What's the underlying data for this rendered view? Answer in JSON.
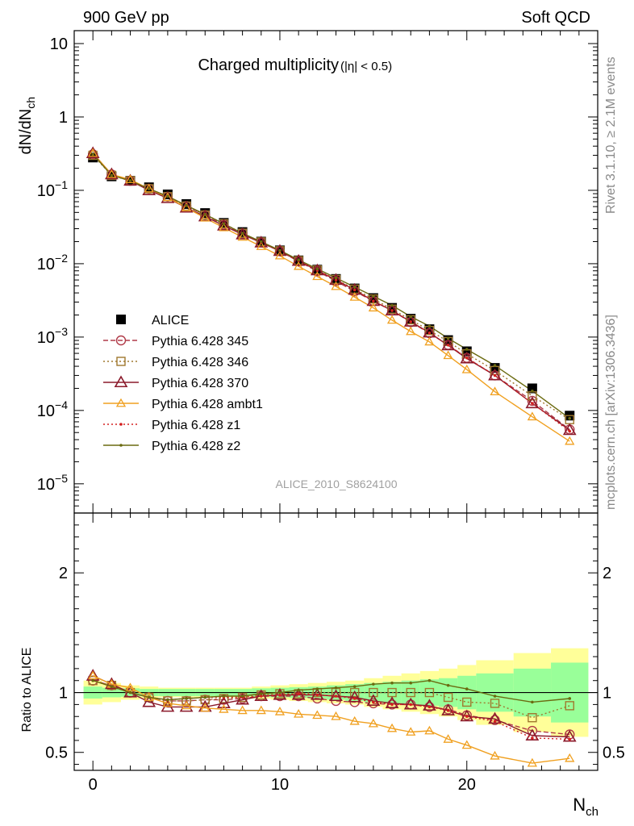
{
  "header": {
    "left": "900 GeV pp",
    "right": "Soft QCD"
  },
  "side_labels": {
    "rivet": "Rivet 3.1.10, ≥ 2.1M events",
    "mcplots": "mcplots.cern.ch [arXiv:1306.3436]"
  },
  "colors": {
    "ALICE": "#000000",
    "Pythia 6.428 345": "#b03a48",
    "Pythia 6.428 346": "#a0782e",
    "Pythia 6.428 370": "#8b1a2b",
    "Pythia 6.428 ambt1": "#f0a020",
    "Pythia 6.428 z1": "#d42020",
    "Pythia 6.428 z2": "#6b6b10",
    "band_inner": "#99ff99",
    "band_outer": "#ffff99"
  },
  "chart_data": [
    {
      "type": "scatter",
      "title_main": "Charged multiplicity",
      "title_suffix": "(|η| < 0.5)",
      "watermark": "ALICE_2010_S8624100",
      "ylabel": "dN/dN",
      "ylabel_sub": "ch",
      "yscale": "log",
      "xlim": [
        -1,
        27
      ],
      "ylim": [
        4e-06,
        15
      ],
      "yticks": [
        {
          "v": 1e-05,
          "base": "10",
          "exp": "−5"
        },
        {
          "v": 0.0001,
          "base": "10",
          "exp": "−4"
        },
        {
          "v": 0.001,
          "base": "10",
          "exp": "−3"
        },
        {
          "v": 0.01,
          "base": "10",
          "exp": "−2"
        },
        {
          "v": 0.1,
          "base": "10",
          "exp": "−1"
        },
        {
          "v": 1,
          "base": "1",
          "exp": ""
        },
        {
          "v": 10,
          "base": "10",
          "exp": ""
        }
      ],
      "legend_position": "middle-left",
      "x": [
        0,
        1,
        2,
        3,
        4,
        5,
        6,
        7,
        8,
        9,
        10,
        11,
        12,
        13,
        14,
        15,
        16,
        17,
        18,
        19,
        20,
        21.5,
        23.5,
        25.5
      ],
      "series": [
        {
          "name": "ALICE",
          "style": "data",
          "values": [
            0.28,
            0.155,
            0.135,
            0.11,
            0.088,
            0.065,
            0.049,
            0.036,
            0.027,
            0.02,
            0.0152,
            0.0111,
            0.0083,
            0.0062,
            0.0046,
            0.0034,
            0.0025,
            0.00178,
            0.00128,
            0.00091,
            0.00064,
            0.00038,
            0.0002,
            8.5e-05
          ]
        },
        {
          "name": "Pythia 6.428 345",
          "style": "circle-dashed",
          "values": [
            0.31,
            0.165,
            0.135,
            0.105,
            0.082,
            0.061,
            0.046,
            0.034,
            0.026,
            0.0195,
            0.0148,
            0.0108,
            0.0079,
            0.0058,
            0.0042,
            0.0031,
            0.0023,
            0.0016,
            0.00113,
            0.00078,
            0.00052,
            0.0003,
            0.000135,
            5.5e-05
          ]
        },
        {
          "name": "Pythia 6.428 346",
          "style": "square-dotted",
          "values": [
            0.3,
            0.16,
            0.135,
            0.105,
            0.082,
            0.061,
            0.046,
            0.035,
            0.026,
            0.0198,
            0.015,
            0.011,
            0.0082,
            0.0061,
            0.0045,
            0.0033,
            0.0024,
            0.00172,
            0.00123,
            0.00087,
            0.00059,
            0.00035,
            0.000158,
            7.5e-05
          ]
        },
        {
          "name": "Pythia 6.428 370",
          "style": "triangle-solid",
          "values": [
            0.32,
            0.165,
            0.135,
            0.1,
            0.078,
            0.058,
            0.044,
            0.033,
            0.025,
            0.0194,
            0.0149,
            0.0109,
            0.0081,
            0.006,
            0.0044,
            0.0031,
            0.0023,
            0.00162,
            0.00115,
            0.00077,
            0.00051,
            0.0003,
            0.000125,
            5.4e-05
          ]
        },
        {
          "name": "Pythia 6.428 ambt1",
          "style": "triangle-small-solid",
          "values": [
            0.32,
            0.165,
            0.14,
            0.105,
            0.08,
            0.058,
            0.042,
            0.031,
            0.023,
            0.0172,
            0.0128,
            0.0092,
            0.0067,
            0.0049,
            0.0035,
            0.0025,
            0.0017,
            0.00119,
            0.00086,
            0.00056,
            0.00036,
            0.00018,
            8.2e-05,
            3.8e-05
          ]
        },
        {
          "name": "Pythia 6.428 z1",
          "style": "dot-dotted",
          "values": [
            0.31,
            0.16,
            0.135,
            0.105,
            0.083,
            0.062,
            0.047,
            0.035,
            0.026,
            0.0196,
            0.0149,
            0.011,
            0.0081,
            0.006,
            0.0044,
            0.0031,
            0.0023,
            0.00162,
            0.00114,
            0.00078,
            0.00052,
            0.0003,
            0.000125,
            5.2e-05
          ]
        },
        {
          "name": "Pythia 6.428 z2",
          "style": "dot-solid",
          "values": [
            0.31,
            0.16,
            0.135,
            0.105,
            0.083,
            0.062,
            0.047,
            0.035,
            0.026,
            0.0199,
            0.0152,
            0.0113,
            0.0085,
            0.0064,
            0.0048,
            0.0036,
            0.0027,
            0.0019,
            0.00141,
            0.00096,
            0.00068,
            0.00041,
            0.000184,
            7.8e-05
          ]
        }
      ]
    },
    {
      "type": "line",
      "ylabel": "Ratio to ALICE",
      "xlabel": "N",
      "xlabel_sub": "ch",
      "xlim": [
        -1,
        27
      ],
      "ylim": [
        0.35,
        2.5
      ],
      "xticks": [
        0,
        10,
        20
      ],
      "yticks": [
        0.5,
        1,
        2
      ],
      "x": [
        0,
        1,
        2,
        3,
        4,
        5,
        6,
        7,
        8,
        9,
        10,
        11,
        12,
        13,
        14,
        15,
        16,
        17,
        18,
        19,
        20,
        21.5,
        23.5,
        25.5
      ],
      "band_edges": [
        -0.5,
        0.5,
        1.5,
        2.5,
        3.5,
        4.5,
        5.5,
        6.5,
        7.5,
        8.5,
        9.5,
        10.5,
        11.5,
        12.5,
        13.5,
        14.5,
        15.5,
        16.5,
        17.5,
        18.5,
        19.5,
        20.5,
        22.5,
        24.5,
        26.5
      ],
      "band_inner": [
        0.05,
        0.04,
        0.035,
        0.03,
        0.03,
        0.03,
        0.03,
        0.03,
        0.03,
        0.035,
        0.04,
        0.045,
        0.05,
        0.06,
        0.07,
        0.08,
        0.09,
        0.1,
        0.11,
        0.12,
        0.14,
        0.16,
        0.2,
        0.25
      ],
      "band_outer": [
        0.1,
        0.08,
        0.06,
        0.05,
        0.04,
        0.04,
        0.04,
        0.04,
        0.04,
        0.05,
        0.06,
        0.07,
        0.08,
        0.09,
        0.1,
        0.12,
        0.14,
        0.16,
        0.18,
        0.2,
        0.23,
        0.27,
        0.33,
        0.37
      ],
      "series": [
        {
          "name": "Pythia 6.428 345",
          "values": [
            1.1,
            1.06,
            1.0,
            0.96,
            0.93,
            0.93,
            0.94,
            0.94,
            0.95,
            0.97,
            0.97,
            0.97,
            0.95,
            0.93,
            0.92,
            0.91,
            0.9,
            0.9,
            0.88,
            0.86,
            0.81,
            0.77,
            0.68,
            0.65
          ]
        },
        {
          "name": "Pythia 6.428 346",
          "values": [
            1.1,
            1.06,
            1.0,
            0.96,
            0.93,
            0.93,
            0.94,
            0.95,
            0.96,
            0.98,
            0.99,
            0.99,
            1.0,
            1.0,
            1.0,
            1.0,
            1.0,
            1.0,
            1.0,
            0.96,
            0.92,
            0.91,
            0.79,
            0.89
          ]
        },
        {
          "name": "Pythia 6.428 370",
          "values": [
            1.14,
            1.07,
            1.0,
            0.92,
            0.88,
            0.88,
            0.88,
            0.91,
            0.94,
            0.97,
            0.98,
            0.98,
            0.98,
            0.97,
            0.96,
            0.93,
            0.91,
            0.9,
            0.89,
            0.85,
            0.8,
            0.78,
            0.64,
            0.63
          ]
        },
        {
          "name": "Pythia 6.428 ambt1",
          "values": [
            1.14,
            1.07,
            1.04,
            0.96,
            0.91,
            0.89,
            0.87,
            0.86,
            0.85,
            0.85,
            0.84,
            0.82,
            0.81,
            0.8,
            0.76,
            0.74,
            0.7,
            0.67,
            0.68,
            0.61,
            0.56,
            0.47,
            0.41,
            0.45
          ]
        },
        {
          "name": "Pythia 6.428 z1",
          "values": [
            1.1,
            1.05,
            1.0,
            0.96,
            0.94,
            0.95,
            0.96,
            0.96,
            0.96,
            0.97,
            0.98,
            0.99,
            0.98,
            0.97,
            0.95,
            0.92,
            0.9,
            0.9,
            0.88,
            0.85,
            0.8,
            0.76,
            0.62,
            0.61
          ]
        },
        {
          "name": "Pythia 6.428 z2",
          "values": [
            1.1,
            1.05,
            1.0,
            0.96,
            0.94,
            0.95,
            0.96,
            0.97,
            0.97,
            0.99,
            1.0,
            1.02,
            1.03,
            1.04,
            1.05,
            1.07,
            1.08,
            1.08,
            1.1,
            1.06,
            1.03,
            0.97,
            0.92,
            0.95
          ]
        }
      ]
    }
  ]
}
